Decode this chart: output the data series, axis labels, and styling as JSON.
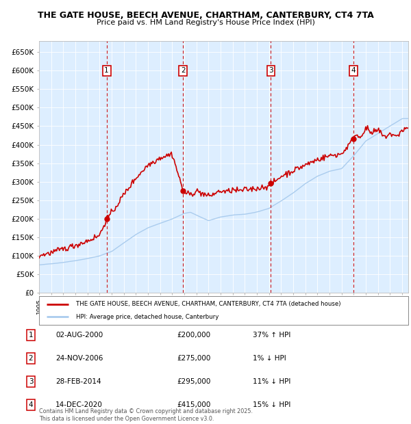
{
  "title_line1": "THE GATE HOUSE, BEECH AVENUE, CHARTHAM, CANTERBURY, CT4 7TA",
  "title_line2": "Price paid vs. HM Land Registry's House Price Index (HPI)",
  "ylim": [
    0,
    680000
  ],
  "yticks": [
    0,
    50000,
    100000,
    150000,
    200000,
    250000,
    300000,
    350000,
    400000,
    450000,
    500000,
    550000,
    600000,
    650000
  ],
  "xlim_start": 1995.0,
  "xlim_end": 2025.5,
  "plot_bg": "#ddeeff",
  "transactions": [
    {
      "num": 1,
      "date": "02-AUG-2000",
      "price": 200000,
      "hpi_diff": "37% ↑ HPI",
      "year": 2000.58
    },
    {
      "num": 2,
      "date": "24-NOV-2006",
      "price": 275000,
      "hpi_diff": "1% ↓ HPI",
      "year": 2006.9
    },
    {
      "num": 3,
      "date": "28-FEB-2014",
      "price": 295000,
      "hpi_diff": "11% ↓ HPI",
      "year": 2014.15
    },
    {
      "num": 4,
      "date": "14-DEC-2020",
      "price": 415000,
      "hpi_diff": "15% ↓ HPI",
      "year": 2020.95
    }
  ],
  "legend_label_red": "THE GATE HOUSE, BEECH AVENUE, CHARTHAM, CANTERBURY, CT4 7TA (detached house)",
  "legend_label_blue": "HPI: Average price, detached house, Canterbury",
  "footer": "Contains HM Land Registry data © Crown copyright and database right 2025.\nThis data is licensed under the Open Government Licence v3.0.",
  "red_color": "#cc0000",
  "blue_color": "#aaccee",
  "marker_box_color": "#cc0000",
  "hpi_keypoints": [
    [
      1995.0,
      75000
    ],
    [
      1996.0,
      78000
    ],
    [
      1997.0,
      82000
    ],
    [
      1998.0,
      87000
    ],
    [
      1999.0,
      93000
    ],
    [
      2000.0,
      100000
    ],
    [
      2001.0,
      112000
    ],
    [
      2002.0,
      135000
    ],
    [
      2003.0,
      158000
    ],
    [
      2004.0,
      176000
    ],
    [
      2005.0,
      188000
    ],
    [
      2006.0,
      200000
    ],
    [
      2007.0,
      215000
    ],
    [
      2007.5,
      218000
    ],
    [
      2008.0,
      210000
    ],
    [
      2009.0,
      195000
    ],
    [
      2010.0,
      205000
    ],
    [
      2011.0,
      210000
    ],
    [
      2012.0,
      212000
    ],
    [
      2013.0,
      218000
    ],
    [
      2014.0,
      228000
    ],
    [
      2015.0,
      248000
    ],
    [
      2016.0,
      270000
    ],
    [
      2017.0,
      295000
    ],
    [
      2018.0,
      315000
    ],
    [
      2019.0,
      328000
    ],
    [
      2020.0,
      335000
    ],
    [
      2021.0,
      370000
    ],
    [
      2022.0,
      410000
    ],
    [
      2023.0,
      430000
    ],
    [
      2024.0,
      450000
    ],
    [
      2025.0,
      470000
    ]
  ],
  "red_keypoints": [
    [
      1995.0,
      100000
    ],
    [
      1996.0,
      108000
    ],
    [
      1997.0,
      118000
    ],
    [
      1998.0,
      128000
    ],
    [
      1999.0,
      140000
    ],
    [
      2000.0,
      155000
    ],
    [
      2000.58,
      200000
    ],
    [
      2001.0,
      215000
    ],
    [
      2002.0,
      265000
    ],
    [
      2003.0,
      310000
    ],
    [
      2004.0,
      345000
    ],
    [
      2005.0,
      365000
    ],
    [
      2006.0,
      375000
    ],
    [
      2006.9,
      275000
    ],
    [
      2007.0,
      270000
    ],
    [
      2007.5,
      265000
    ],
    [
      2008.0,
      275000
    ],
    [
      2008.5,
      268000
    ],
    [
      2009.0,
      260000
    ],
    [
      2009.5,
      268000
    ],
    [
      2010.0,
      275000
    ],
    [
      2010.5,
      272000
    ],
    [
      2011.0,
      278000
    ],
    [
      2011.5,
      275000
    ],
    [
      2012.0,
      278000
    ],
    [
      2012.5,
      280000
    ],
    [
      2013.0,
      282000
    ],
    [
      2013.5,
      285000
    ],
    [
      2014.0,
      290000
    ],
    [
      2014.15,
      295000
    ],
    [
      2014.5,
      300000
    ],
    [
      2015.0,
      315000
    ],
    [
      2016.0,
      330000
    ],
    [
      2017.0,
      345000
    ],
    [
      2018.0,
      360000
    ],
    [
      2019.0,
      370000
    ],
    [
      2020.0,
      375000
    ],
    [
      2020.95,
      415000
    ],
    [
      2021.0,
      430000
    ],
    [
      2021.5,
      420000
    ],
    [
      2022.0,
      445000
    ],
    [
      2022.5,
      430000
    ],
    [
      2023.0,
      440000
    ],
    [
      2023.5,
      420000
    ],
    [
      2024.0,
      430000
    ],
    [
      2024.5,
      420000
    ],
    [
      2025.0,
      440000
    ],
    [
      2025.5,
      445000
    ]
  ]
}
